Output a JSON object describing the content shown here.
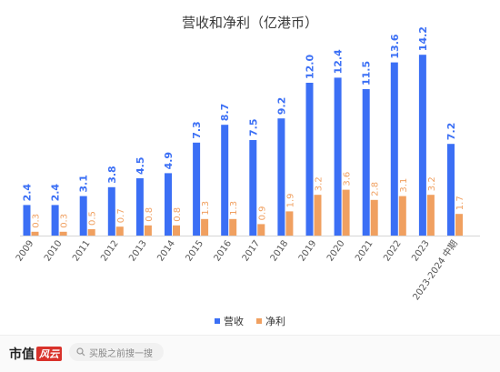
{
  "title": "营收和净利（亿港币）",
  "legend": [
    {
      "name": "营收",
      "color": "#3b6ff5"
    },
    {
      "name": "净利",
      "color": "#f0a060"
    }
  ],
  "chart_data": {
    "type": "bar",
    "title": "营收和净利（亿港币）",
    "categories": [
      "2009",
      "2010",
      "2011",
      "2012",
      "2013",
      "2014",
      "2015",
      "2016",
      "2017",
      "2018",
      "2019",
      "2020",
      "2021",
      "2022",
      "2023",
      "2023-2024 中期"
    ],
    "series": [
      {
        "name": "营收",
        "color": "#3b6ff5",
        "values": [
          2.4,
          2.4,
          3.1,
          3.8,
          4.5,
          4.9,
          7.3,
          8.7,
          7.5,
          9.2,
          12.0,
          12.4,
          11.5,
          13.6,
          14.2,
          7.2
        ],
        "labels": [
          "2.4",
          "2.4",
          "3.1",
          "3.8",
          "4.5",
          "4.9",
          "7.3",
          "8.7",
          "7.5",
          "9.2",
          "12.0",
          "12.4",
          "11.5",
          "13.6",
          "14.2",
          "7.2"
        ]
      },
      {
        "name": "净利",
        "color": "#f0a060",
        "values": [
          0.3,
          0.3,
          0.5,
          0.7,
          0.8,
          0.8,
          1.3,
          1.3,
          0.9,
          1.9,
          3.2,
          3.6,
          2.8,
          3.1,
          3.2,
          1.7
        ],
        "labels": [
          "0.3",
          "0.3",
          "0.5",
          "0.7",
          "0.8",
          "0.8",
          "1.3",
          "1.3",
          "0.9",
          "1.9",
          "3.2",
          "3.6",
          "2.8",
          "3.1",
          "3.2",
          "1.7"
        ]
      }
    ],
    "ylim": [
      0,
      15
    ],
    "grid": false,
    "legend_position": "bottom"
  },
  "footer": {
    "brand": "市值",
    "brand_mark": "风云",
    "search_placeholder": "买股之前搜一搜",
    "search_icon": "search-icon"
  }
}
